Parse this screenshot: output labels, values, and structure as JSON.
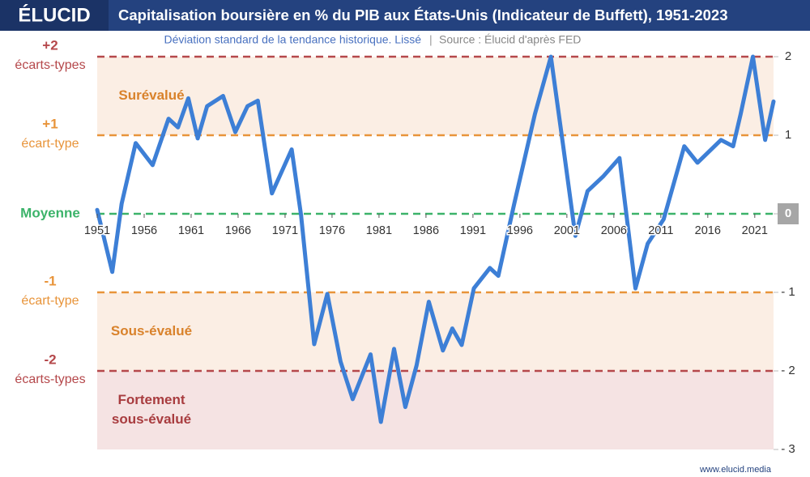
{
  "chart_data": {
    "type": "line",
    "brand": "ÉLUCID",
    "title": "Capitalisation boursière en % du PIB aux États-Unis (Indicateur de Buffett), 1951-2023",
    "subtitle": "Déviation standard de la tendance historique. Lissé",
    "source": "Source : Élucid d'après FED",
    "footer": "www.elucid.media",
    "x": [
      1951,
      1952.6,
      1953.6,
      1955.1,
      1956.9,
      1958.6,
      1959.6,
      1960.7,
      1961.7,
      1962.7,
      1964.4,
      1965.7,
      1967,
      1968.1,
      1969.6,
      1971.7,
      1972.7,
      1974.1,
      1975.5,
      1976.9,
      1978.2,
      1980.1,
      1981.2,
      1982.6,
      1983.8,
      1985,
      1986.3,
      1987.8,
      1988.8,
      1989.8,
      1991.1,
      1992.8,
      1993.7,
      1995.4,
      1997.6,
      1999.3,
      2000.6,
      2001.9,
      2003.2,
      2004.9,
      2006.6,
      2008.3,
      2009.6,
      2011.3,
      2013.5,
      2014.9,
      2017.4,
      2018.7,
      2019.5,
      2020.8,
      2022.1,
      2023
    ],
    "series": [
      {
        "color": "#3d7fd6",
        "values": [
          0.05,
          -0.74,
          0.13,
          0.9,
          0.62,
          1.21,
          1.1,
          1.47,
          0.96,
          1.37,
          1.5,
          1.04,
          1.37,
          1.44,
          0.26,
          0.82,
          -0.02,
          -1.66,
          -1.02,
          -1.88,
          -2.36,
          -1.79,
          -2.65,
          -1.72,
          -2.46,
          -1.93,
          -1.12,
          -1.74,
          -1.46,
          -1.67,
          -0.95,
          -0.69,
          -0.79,
          0.13,
          1.27,
          2.0,
          0.87,
          -0.28,
          0.29,
          0.48,
          0.71,
          -0.95,
          -0.38,
          -0.07,
          0.86,
          0.65,
          0.94,
          0.86,
          1.27,
          2.0,
          0.94,
          1.43
        ]
      }
    ],
    "xlim": [
      1951,
      2023
    ],
    "ylim": [
      -3,
      2
    ],
    "xticks": [
      1951,
      1956,
      1961,
      1966,
      1971,
      1976,
      1981,
      1986,
      1991,
      1996,
      2001,
      2006,
      2011,
      2016,
      2021
    ],
    "yticks": [
      2,
      1,
      0,
      {
        "value": -1,
        "label": "- 1"
      },
      {
        "value": -2,
        "label": "- 2"
      },
      {
        "value": -3,
        "label": "- 3"
      }
    ],
    "reference_lines": [
      {
        "value": 2,
        "color": "#b5484b",
        "label": [
          "+2",
          "écarts-types"
        ]
      },
      {
        "value": 1,
        "color": "#e8943a",
        "label": [
          "+1",
          "écart-type"
        ]
      },
      {
        "value": 0,
        "color": "#3cb36a",
        "label": [
          "Moyenne"
        ]
      },
      {
        "value": -1,
        "color": "#e8943a",
        "label": [
          "-1",
          "écart-type"
        ]
      },
      {
        "value": -2,
        "color": "#b5484b",
        "label": [
          "-2",
          "écarts-types"
        ]
      }
    ],
    "zones": [
      {
        "from": 1,
        "to": 2,
        "color": "#fbeee4",
        "text_color": "#d9822b",
        "label": [
          "Surévalué"
        ]
      },
      {
        "from": -2,
        "to": -1,
        "color": "#fbeee4",
        "text_color": "#d9822b",
        "label": [
          "Sous-évalué"
        ]
      },
      {
        "from": -3,
        "to": -2,
        "color": "#f5e3e3",
        "text_color": "#a83c3f",
        "label": [
          "Fortement",
          "sous-évalué"
        ]
      }
    ]
  }
}
